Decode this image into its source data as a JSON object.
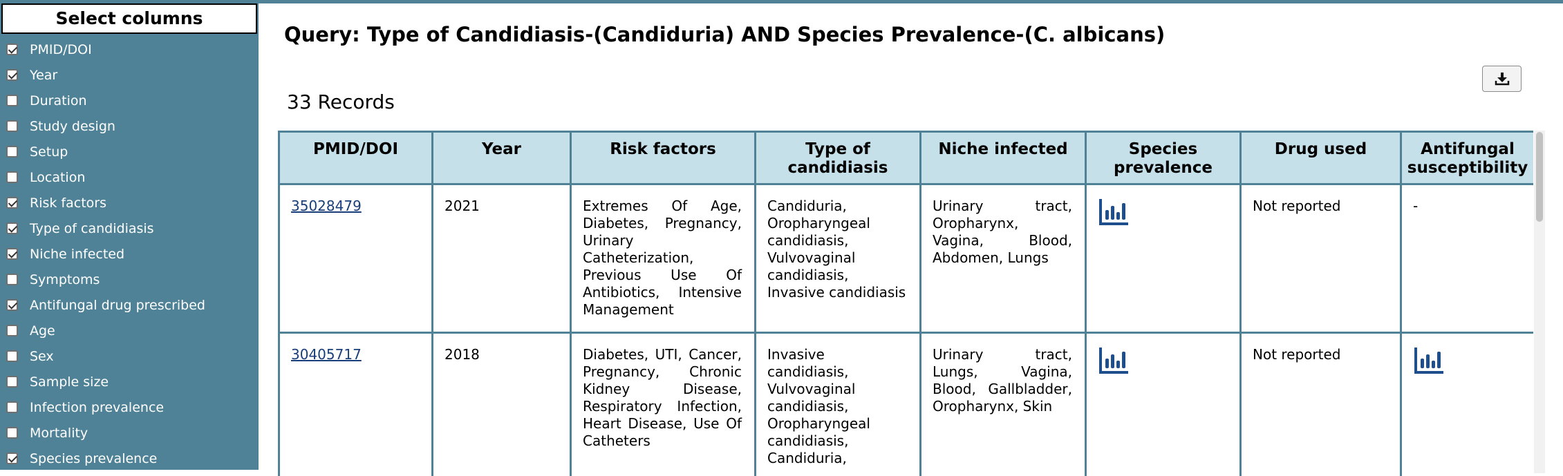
{
  "sidebar": {
    "title": "Select columns",
    "columns": [
      {
        "label": "PMID/DOI",
        "checked": true
      },
      {
        "label": "Year",
        "checked": true
      },
      {
        "label": "Duration",
        "checked": false
      },
      {
        "label": "Study design",
        "checked": false
      },
      {
        "label": "Setup",
        "checked": false
      },
      {
        "label": "Location",
        "checked": false
      },
      {
        "label": "Risk factors",
        "checked": true
      },
      {
        "label": "Type of candidiasis",
        "checked": true
      },
      {
        "label": "Niche infected",
        "checked": true
      },
      {
        "label": "Symptoms",
        "checked": false
      },
      {
        "label": "Antifungal drug prescribed",
        "checked": true
      },
      {
        "label": "Age",
        "checked": false
      },
      {
        "label": "Sex",
        "checked": false
      },
      {
        "label": "Sample size",
        "checked": false
      },
      {
        "label": "Infection prevalence",
        "checked": false
      },
      {
        "label": "Mortality",
        "checked": false
      },
      {
        "label": "Species prevalence",
        "checked": true
      }
    ]
  },
  "main": {
    "query_title": "Query: Type of Candidiasis-(Candiduria) AND Species Prevalence-(C. albicans)",
    "records_count": "33 Records",
    "download_icon": "download-icon"
  },
  "table": {
    "headers": {
      "pmid": "PMID/DOI",
      "year": "Year",
      "risk": "Risk factors",
      "type": "Type of candidiasis",
      "niche": "Niche infected",
      "species": "Species prevalence",
      "drug": "Drug used",
      "antifungal": "Antifungal susceptibility"
    },
    "rows": [
      {
        "pmid": "35028479",
        "year": "2021",
        "risk": "Extremes Of Age, Diabetes, Pregnancy, Urinary Catheterization, Previous Use Of Antibiotics, Intensive Management",
        "type": "Candiduria, Oropharyngeal candidiasis, Vulvovaginal candidiasis, Invasive candidiasis",
        "niche": "Urinary tract, Oropharynx, Vagina, Blood, Abdomen, Lungs",
        "drug": "Not reported",
        "antifungal": "-"
      },
      {
        "pmid": "30405717",
        "year": "2018",
        "risk": "Diabetes, UTI, Cancer, Pregnancy, Chronic Kidney Disease, Respiratory Infection, Heart Disease, Use Of Catheters",
        "type": "Invasive candidiasis, Vulvovaginal candidiasis, Oropharyngeal candidiasis, Candiduria,",
        "niche": "Urinary tract, Lungs, Vagina, Blood, Gallbladder, Oropharynx, Skin",
        "drug": "Not reported",
        "antifungal": ""
      }
    ]
  },
  "colors": {
    "sidebar_bg": "#4f8296",
    "header_bg": "#c6e0ea",
    "icon": "#1f4e8c"
  }
}
